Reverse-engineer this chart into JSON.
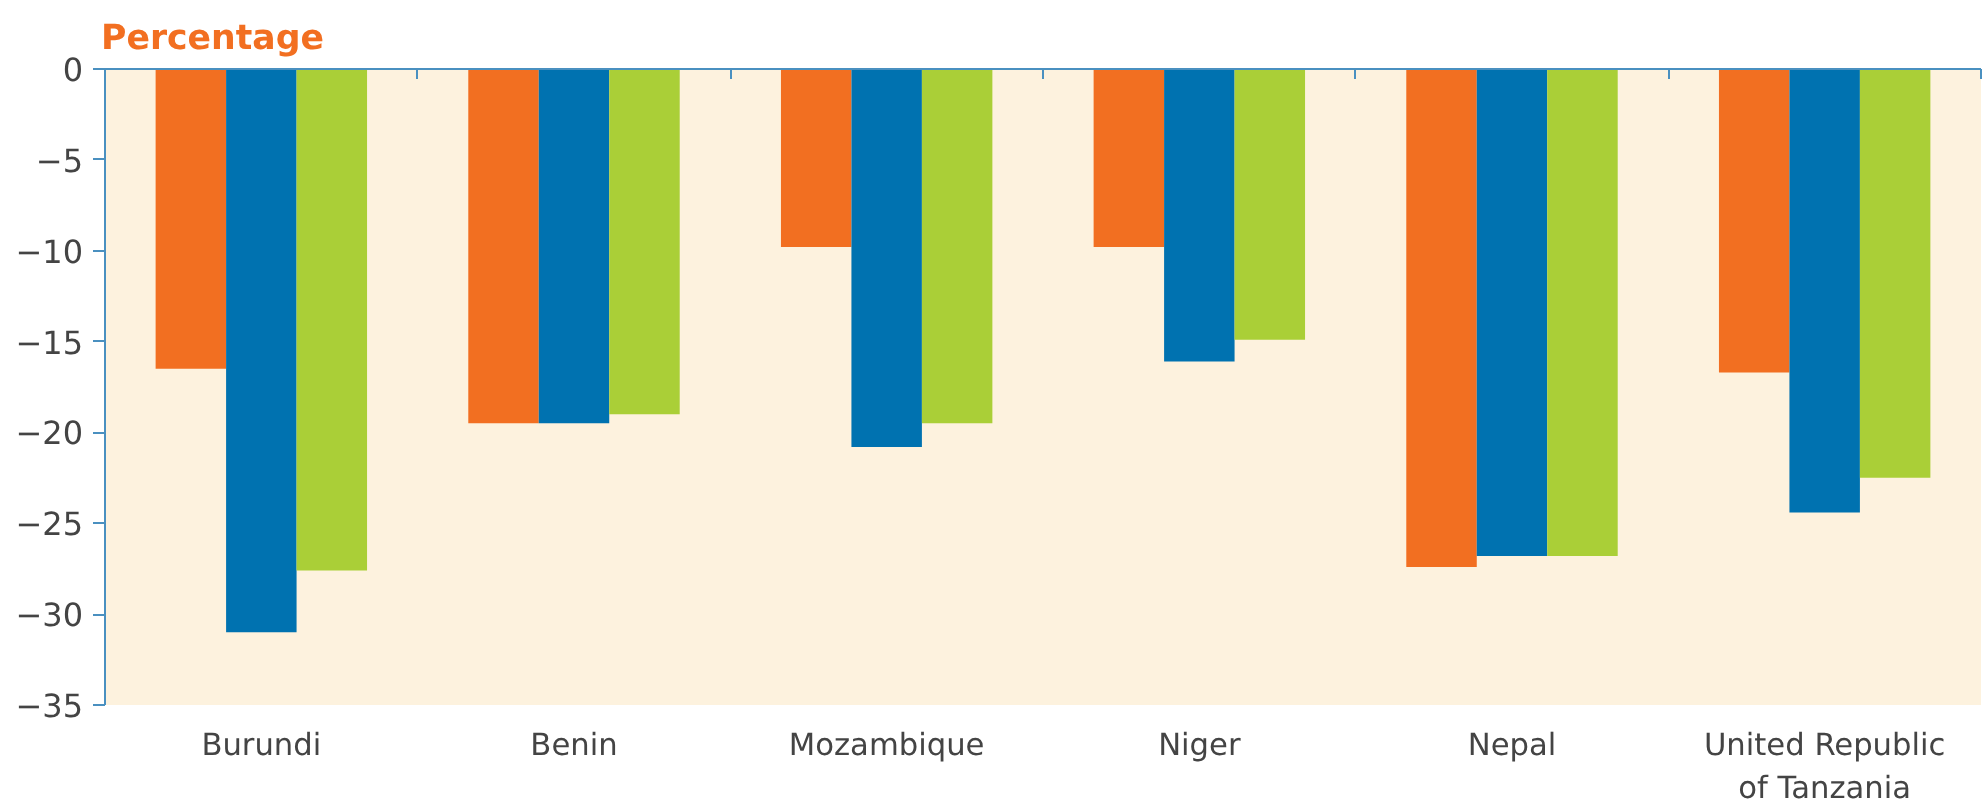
{
  "chart_data": {
    "type": "bar",
    "title": "Percentage",
    "categories": [
      "Burundi",
      "Benin",
      "Mozambique",
      "Niger",
      "Nepal",
      "United Republic of Tanzania"
    ],
    "series": [
      {
        "color": "#f26f21",
        "values": [
          -16.5,
          -19.5,
          -9.8,
          -9.8,
          -27.4,
          -16.7
        ]
      },
      {
        "color": "#0072b0",
        "values": [
          -31.0,
          -19.5,
          -20.8,
          -16.1,
          -26.8,
          -24.4
        ]
      },
      {
        "color": "#aacf37",
        "values": [
          -27.6,
          -19.0,
          -19.5,
          -14.9,
          -26.8,
          -22.5
        ]
      }
    ],
    "ylim": [
      -35,
      0
    ],
    "yticks": [
      -35,
      -30,
      -25,
      -20,
      -15,
      -10,
      -5,
      0
    ],
    "grid": false
  }
}
